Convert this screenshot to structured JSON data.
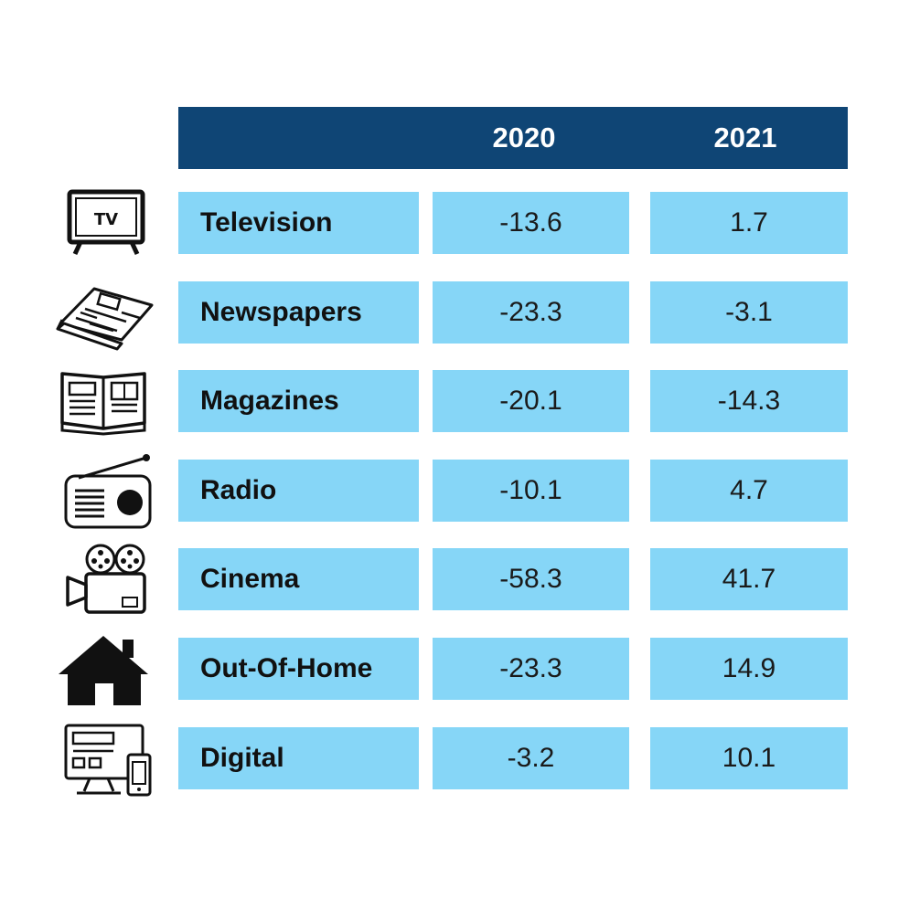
{
  "chart_data": {
    "type": "table",
    "columns": [
      "2020",
      "2021"
    ],
    "rows": [
      {
        "label": "Television",
        "icon": "tv-icon",
        "values": [
          "-13.6",
          "1.7"
        ]
      },
      {
        "label": "Newspapers",
        "icon": "newspaper-icon",
        "values": [
          "-23.3",
          "-3.1"
        ]
      },
      {
        "label": "Magazines",
        "icon": "magazine-icon",
        "values": [
          "-20.1",
          "-14.3"
        ]
      },
      {
        "label": "Radio",
        "icon": "radio-icon",
        "values": [
          "-10.1",
          "4.7"
        ]
      },
      {
        "label": "Cinema",
        "icon": "film-camera-icon",
        "values": [
          "-58.3",
          "41.7"
        ]
      },
      {
        "label": "Out-Of-Home",
        "icon": "house-icon",
        "values": [
          "-23.3",
          "14.9"
        ]
      },
      {
        "label": "Digital",
        "icon": "devices-icon",
        "values": [
          "-3.2",
          "10.1"
        ]
      }
    ],
    "icon_labels": {
      "tv": "TV"
    },
    "colors": {
      "header": "#0f4575",
      "cell": "#86d6f7",
      "header_text": "#ffffff"
    }
  }
}
